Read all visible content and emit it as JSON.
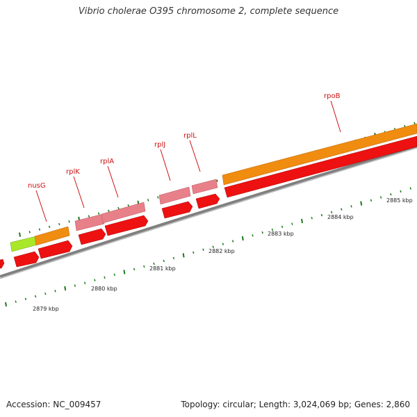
{
  "title": "Vibrio cholerae O395 chromosome 2, complete sequence",
  "footer": {
    "accession": "Accession: NC_009457",
    "summary": "Topology: circular; Length: 3,024,069 bp; Genes: 2,860"
  },
  "colors": {
    "gene_light": "#e8808a",
    "gene_orange": "#f08c10",
    "gene_green": "#a8e828",
    "cds_red": "#ee1111",
    "backbone": "#808080",
    "tick": "#1a7a1a",
    "label": "#cc1111"
  },
  "scale_labels": [
    "2879 kbp",
    "2880 kbp",
    "2881 kbp",
    "2882 kbp",
    "2883 kbp",
    "2884 kbp",
    "2885 kbp"
  ],
  "gene_labels": [
    "nusG",
    "rplK",
    "rplA",
    "rplJ",
    "rplL",
    "rpoB"
  ]
}
